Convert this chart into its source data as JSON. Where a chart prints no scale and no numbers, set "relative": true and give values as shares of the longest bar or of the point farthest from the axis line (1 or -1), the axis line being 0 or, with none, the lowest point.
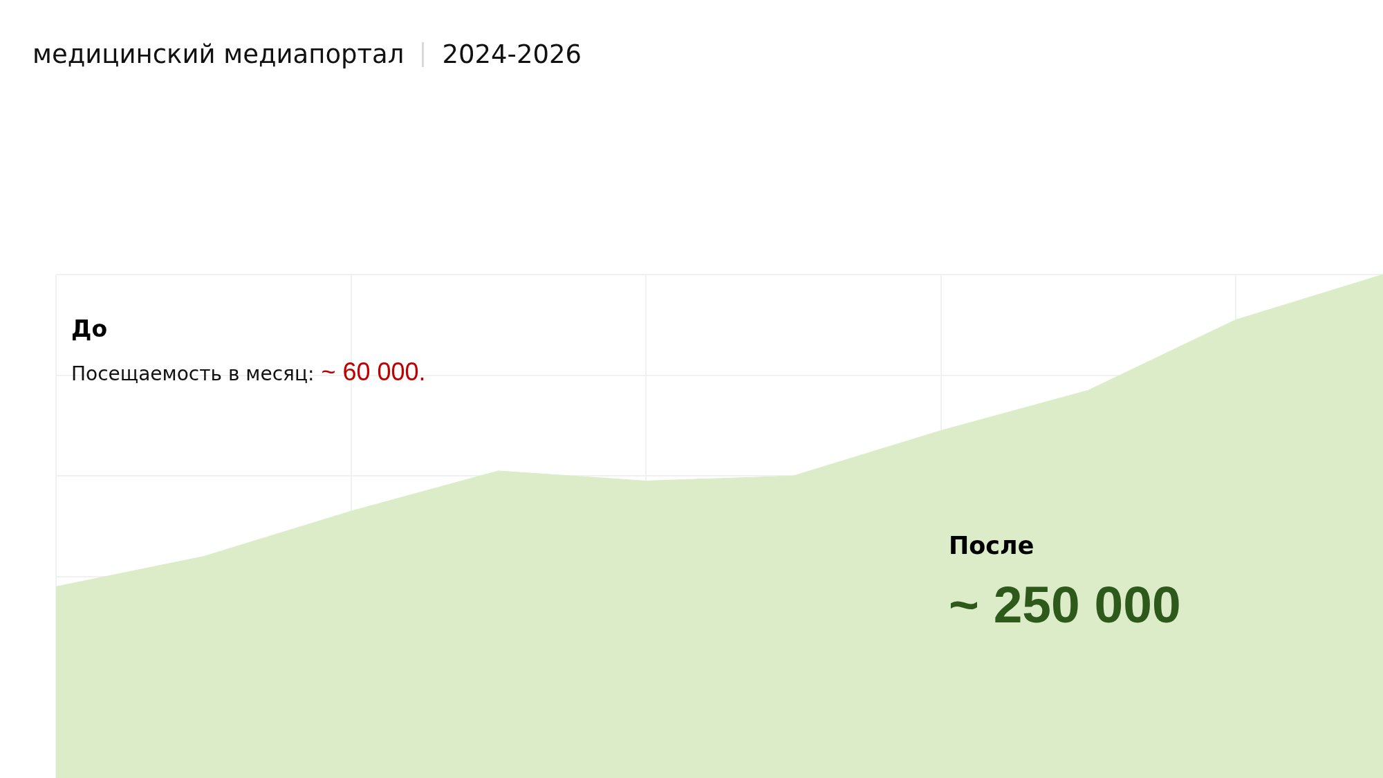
{
  "chart_data": {
    "type": "area",
    "title": "медицинский медиапортал",
    "subtitle": "2024-2026",
    "annotations": [
      "До",
      "Посещаемость в месяц:",
      "~ 60 000.",
      "После",
      "~ 250 000"
    ],
    "categories": [
      null,
      null,
      null,
      null,
      null,
      null,
      null,
      null,
      null,
      null
    ],
    "relative": true,
    "series": [
      {
        "color": "#dcecc8",
        "values": [
          0.38,
          0.44,
          0.53,
          0.61,
          0.59,
          0.6,
          0.69,
          0.77,
          0.91,
          1
        ]
      }
    ],
    "grid": true,
    "marker": "none",
    "tick_labels": false
  }
}
